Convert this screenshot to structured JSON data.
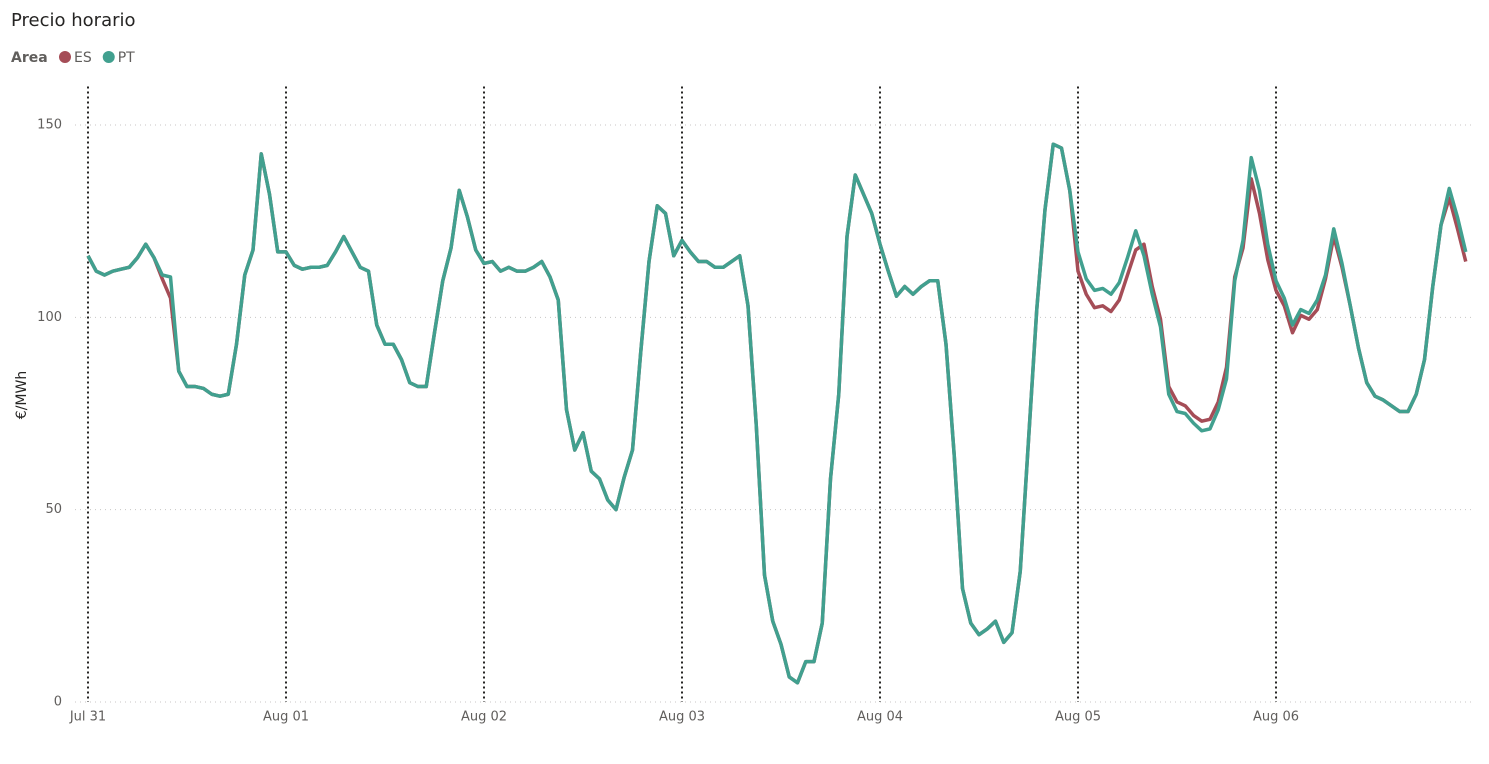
{
  "chart_data": {
    "type": "line",
    "title": "Precio horario",
    "legend_title": "Area",
    "y_label": "€/MWh",
    "x": [
      0,
      1,
      2,
      3,
      4,
      5,
      6,
      7,
      8,
      9,
      10,
      11,
      12,
      13,
      14,
      15,
      16,
      17,
      18,
      19,
      20,
      21,
      22,
      23,
      24,
      25,
      26,
      27,
      28,
      29,
      30,
      31,
      32,
      33,
      34,
      35,
      36,
      37,
      38,
      39,
      40,
      41,
      42,
      43,
      44,
      45,
      46,
      47,
      48,
      49,
      50,
      51,
      52,
      53,
      54,
      55,
      56,
      57,
      58,
      59,
      60,
      61,
      62,
      63,
      64,
      65,
      66,
      67,
      68,
      69,
      70,
      71,
      72,
      73,
      74,
      75,
      76,
      77,
      78,
      79,
      80,
      81,
      82,
      83,
      84,
      85,
      86,
      87,
      88,
      89,
      90,
      91,
      92,
      93,
      94,
      95,
      96,
      97,
      98,
      99,
      100,
      101,
      102,
      103,
      104,
      105,
      106,
      107,
      108,
      109,
      110,
      111,
      112,
      113,
      114,
      115,
      116,
      117,
      118,
      119,
      120,
      121,
      122,
      123,
      124,
      125,
      126,
      127,
      128,
      129,
      130,
      131,
      132,
      133,
      134,
      135,
      136,
      137,
      138,
      139,
      140,
      141,
      142,
      143,
      144,
      145,
      146,
      147,
      148,
      149,
      150,
      151,
      152,
      153,
      154,
      155,
      156,
      157,
      158,
      159,
      160,
      161,
      162,
      163,
      164,
      165,
      166,
      167
    ],
    "series": [
      {
        "name": "ES",
        "color": "#a54d57",
        "values": [
          116,
          112,
          111,
          112,
          112.5,
          113,
          115.5,
          119,
          115.5,
          110,
          105,
          86,
          82,
          82,
          81.5,
          80,
          79.5,
          80,
          93,
          111,
          117.5,
          142.5,
          132,
          117,
          117,
          113.5,
          112.5,
          113,
          113,
          113.5,
          117,
          121,
          117,
          113,
          112,
          98,
          93,
          93,
          89,
          83,
          82,
          82,
          96,
          109.5,
          118,
          133,
          126,
          117.5,
          114,
          114.5,
          112,
          113,
          112,
          112,
          113,
          114.5,
          110.5,
          104.5,
          76,
          65.5,
          70,
          60,
          58,
          52.5,
          50,
          58.5,
          65.5,
          91,
          114.5,
          129,
          127,
          116,
          120,
          117,
          114.5,
          114.5,
          113,
          113,
          114.5,
          116,
          103,
          72,
          33,
          21,
          15,
          6.5,
          5,
          10.5,
          10.5,
          20.5,
          58,
          80,
          121,
          137,
          132,
          127,
          119,
          112,
          105.5,
          108,
          106,
          108,
          109.5,
          109.5,
          93,
          64,
          29.5,
          20.5,
          17.5,
          19,
          21,
          15.5,
          18,
          34,
          68,
          102,
          128,
          145,
          144,
          133,
          112,
          106,
          102.5,
          103,
          101.5,
          104.5,
          111,
          117.5,
          119,
          108,
          99.5,
          82,
          78,
          77,
          74.5,
          73,
          73.5,
          78,
          87,
          110.5,
          118,
          136,
          127,
          115,
          107,
          103,
          96,
          100.5,
          99.5,
          102,
          110,
          121,
          113,
          103,
          92,
          83,
          79.5,
          78.5,
          77,
          75.5,
          75.5,
          80,
          89,
          108,
          124,
          131,
          123,
          114.5
        ]
      },
      {
        "name": "PT",
        "color": "#41a08f",
        "values": [
          116,
          112,
          111,
          112,
          112.5,
          113,
          115.5,
          119,
          115.5,
          111,
          110.5,
          86,
          82,
          82,
          81.5,
          80,
          79.5,
          80,
          93,
          111,
          117.5,
          142.5,
          132,
          117,
          117,
          113.5,
          112.5,
          113,
          113,
          113.5,
          117,
          121,
          117,
          113,
          112,
          98,
          93,
          93,
          89,
          83,
          82,
          82,
          96,
          109.5,
          118,
          133,
          126,
          117.5,
          114,
          114.5,
          112,
          113,
          112,
          112,
          113,
          114.5,
          110.5,
          104.5,
          76,
          65.5,
          70,
          60,
          58,
          52.5,
          50,
          58.5,
          65.5,
          91,
          114.5,
          129,
          127,
          116,
          120,
          117,
          114.5,
          114.5,
          113,
          113,
          114.5,
          116,
          103,
          72,
          33,
          21,
          15,
          6.5,
          5,
          10.5,
          10.5,
          20.5,
          58,
          80,
          121,
          137,
          132,
          127,
          119,
          112,
          105.5,
          108,
          106,
          108,
          109.5,
          109.5,
          93,
          64,
          29.5,
          20.5,
          17.5,
          19,
          21,
          15.5,
          18,
          34,
          68,
          102,
          128,
          145,
          144,
          133,
          117,
          110,
          107,
          107.5,
          106,
          109,
          115.5,
          122.5,
          116,
          106,
          97.5,
          80,
          75.5,
          75,
          72.5,
          70.5,
          71,
          76,
          84,
          109.5,
          120,
          141.5,
          133,
          119,
          109.5,
          105,
          98,
          102,
          101,
          104.5,
          111,
          123,
          114,
          103,
          92,
          83,
          79.5,
          78.5,
          77,
          75.5,
          75.5,
          80,
          89,
          108,
          124,
          133.5,
          126,
          117
        ]
      }
    ],
    "xlim": [
      0,
      168
    ],
    "xticks": [
      {
        "value": 0,
        "label": "Jul 31"
      },
      {
        "value": 24,
        "label": "Aug 01"
      },
      {
        "value": 48,
        "label": "Aug 02"
      },
      {
        "value": 72,
        "label": "Aug 03"
      },
      {
        "value": 96,
        "label": "Aug 04"
      },
      {
        "value": 120,
        "label": "Aug 05"
      },
      {
        "value": 144,
        "label": "Aug 06"
      }
    ],
    "ylim": [
      0,
      160
    ],
    "yticks": [
      0,
      50,
      100,
      150
    ],
    "grid": true
  }
}
